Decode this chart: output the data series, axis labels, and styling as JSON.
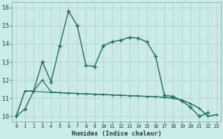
{
  "xlabel": "Humidex (Indice chaleur)",
  "background_color": "#cceae8",
  "grid_color": "#b0d0ce",
  "line_color": "#1a6b5a",
  "xlim": [
    -0.5,
    23.5
  ],
  "ylim": [
    9.7,
    16.3
  ],
  "xticks": [
    0,
    1,
    2,
    3,
    4,
    5,
    6,
    7,
    8,
    9,
    10,
    11,
    12,
    13,
    14,
    15,
    16,
    17,
    18,
    19,
    20,
    21,
    22,
    23
  ],
  "yticks": [
    10,
    11,
    12,
    13,
    14,
    15,
    16
  ],
  "line1_x": [
    0,
    1,
    2,
    3,
    4,
    5,
    6,
    7,
    8,
    9,
    10,
    11,
    12,
    13,
    14,
    15,
    16,
    17,
    18,
    19,
    20,
    21,
    22
  ],
  "line1_y": [
    10.0,
    10.4,
    11.4,
    13.0,
    11.9,
    13.9,
    15.8,
    15.0,
    12.8,
    12.75,
    13.9,
    14.1,
    14.2,
    14.35,
    14.3,
    14.1,
    13.3,
    11.15,
    11.1,
    10.85,
    10.5,
    10.0,
    10.2
  ],
  "line2_x": [
    0,
    1,
    2,
    3,
    4,
    5,
    6,
    7,
    8,
    9,
    10,
    11,
    12,
    13,
    14,
    15,
    16,
    17,
    18,
    19,
    20,
    21,
    22,
    23
  ],
  "line2_y": [
    10.0,
    11.4,
    11.4,
    12.0,
    11.35,
    11.3,
    11.28,
    11.26,
    11.24,
    11.22,
    11.2,
    11.18,
    11.16,
    11.14,
    11.12,
    11.1,
    11.08,
    11.05,
    11.0,
    10.9,
    10.7,
    10.45,
    10.0,
    10.1
  ],
  "line3_x": [
    0,
    1,
    2,
    3,
    4,
    5,
    6,
    7,
    8,
    9,
    10,
    11,
    12,
    13,
    14,
    15,
    16,
    17,
    18,
    19,
    20,
    21,
    22,
    23
  ],
  "line3_y": [
    10.0,
    11.4,
    11.38,
    11.35,
    11.32,
    11.3,
    11.28,
    11.26,
    11.24,
    11.22,
    11.2,
    11.18,
    11.16,
    11.14,
    11.12,
    11.1,
    11.08,
    11.05,
    11.0,
    10.9,
    10.7,
    10.45,
    10.0,
    10.1
  ]
}
